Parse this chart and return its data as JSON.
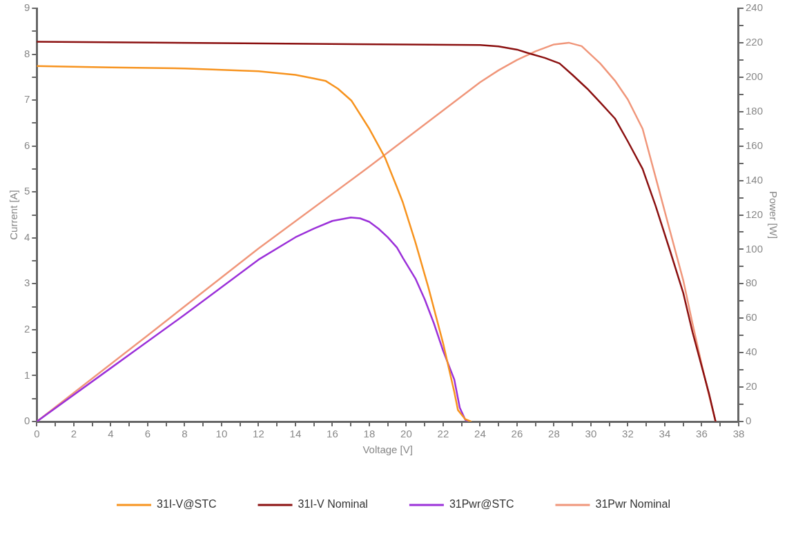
{
  "chart_data": {
    "type": "line",
    "xlabel": "Voltage [V]",
    "ylabel": "Current [A]",
    "y2label": "Power [W]",
    "xlim": [
      0,
      38
    ],
    "ylim": [
      0,
      9
    ],
    "y2lim": [
      0,
      240
    ],
    "xticks": [
      0,
      {
        "value": 1,
        "label": null
      },
      2,
      {
        "value": 3,
        "label": null
      },
      4,
      {
        "value": 5,
        "label": null
      },
      6,
      {
        "value": 7,
        "label": null
      },
      8,
      {
        "value": 9,
        "label": null
      },
      10,
      {
        "value": 11,
        "label": null
      },
      12,
      {
        "value": 13,
        "label": null
      },
      14,
      {
        "value": 15,
        "label": null
      },
      16,
      {
        "value": 17,
        "label": null
      },
      18,
      {
        "value": 19,
        "label": null
      },
      20,
      {
        "value": 21,
        "label": null
      },
      22,
      {
        "value": 23,
        "label": null
      },
      24,
      {
        "value": 25,
        "label": null
      },
      26,
      {
        "value": 27,
        "label": null
      },
      28,
      {
        "value": 29,
        "label": null
      },
      30,
      {
        "value": 31,
        "label": null
      },
      32,
      {
        "value": 33,
        "label": null
      },
      34,
      {
        "value": 35,
        "label": null
      },
      36,
      {
        "value": 37,
        "label": null
      },
      38
    ],
    "yticks": [
      0,
      {
        "value": 0.5,
        "label": null
      },
      1,
      {
        "value": 1.5,
        "label": null
      },
      2,
      {
        "value": 2.5,
        "label": null
      },
      3,
      {
        "value": 3.5,
        "label": null
      },
      4,
      {
        "value": 4.5,
        "label": null
      },
      5,
      {
        "value": 5.5,
        "label": null
      },
      6,
      {
        "value": 6.5,
        "label": null
      },
      7,
      {
        "value": 7.5,
        "label": null
      },
      8,
      {
        "value": 8.5,
        "label": null
      },
      9
    ],
    "y2ticks": [
      0,
      {
        "value": 10,
        "label": null
      },
      20,
      {
        "value": 30,
        "label": null
      },
      40,
      {
        "value": 50,
        "label": null
      },
      60,
      {
        "value": 70,
        "label": null
      },
      80,
      {
        "value": 90,
        "label": null
      },
      100,
      {
        "value": 110,
        "label": null
      },
      120,
      {
        "value": 130,
        "label": null
      },
      140,
      {
        "value": 150,
        "label": null
      },
      160,
      {
        "value": 170,
        "label": null
      },
      180,
      {
        "value": 190,
        "label": null
      },
      200,
      {
        "value": 210,
        "label": null
      },
      220,
      {
        "value": 230,
        "label": null
      },
      240
    ],
    "grid": false,
    "legend": "bottom",
    "marker": "none",
    "line_style": "solid",
    "series": [
      {
        "name": "31I-V@STC",
        "color": "#f7931e",
        "x": [
          0,
          4,
          8,
          12,
          14,
          15,
          15.63,
          16.3,
          17.03,
          17.98,
          18.85,
          19.5,
          19.82,
          20.5,
          21.2,
          22,
          22.6,
          22.8,
          23.2,
          23.5
        ],
        "values": [
          7.74,
          7.71,
          7.69,
          7.63,
          7.55,
          7.47,
          7.42,
          7.25,
          6.99,
          6.39,
          5.75,
          5.1,
          4.77,
          3.9,
          2.92,
          1.7,
          0.65,
          0.25,
          0.05,
          0
        ]
      },
      {
        "name": "31I-V Nominal",
        "color": "#8b1010",
        "x": [
          0,
          10,
          20,
          24,
          25,
          26,
          26.8,
          27.5,
          28.3,
          29,
          29.8,
          30.5,
          31.3,
          32,
          32.8,
          33.5,
          34.3,
          35,
          35.5,
          36,
          36.4,
          36.75
        ],
        "values": [
          8.27,
          8.24,
          8.21,
          8.2,
          8.17,
          8.1,
          8.0,
          7.92,
          7.8,
          7.55,
          7.25,
          6.95,
          6.6,
          6.1,
          5.5,
          4.7,
          3.7,
          2.8,
          1.95,
          1.2,
          0.6,
          0
        ]
      },
      {
        "name": "31Pwr@STC",
        "color": "#9b30d9",
        "axis": "y2",
        "x": [
          0,
          4,
          8,
          12,
          14,
          15,
          16,
          17,
          17.5,
          18,
          18.5,
          19,
          19.5,
          19.82,
          20.5,
          21,
          21.5,
          22,
          22.6,
          22.9,
          23.2,
          23.4
        ],
        "values": [
          0,
          31,
          62,
          94,
          107,
          112,
          116.5,
          118.5,
          118,
          116,
          112,
          107,
          101,
          95,
          83,
          71,
          57,
          41,
          24.5,
          8,
          1,
          0
        ]
      },
      {
        "name": "31Pwr Nominal",
        "color": "#f0967a",
        "axis": "y2",
        "x": [
          0,
          6,
          12,
          18,
          24,
          25,
          26,
          27,
          28,
          28.8,
          29.5,
          30.5,
          31.3,
          32,
          32.8,
          33.5,
          34.3,
          35,
          35.5,
          36,
          36.4,
          36.75
        ],
        "values": [
          0,
          50,
          100.5,
          148,
          197,
          204,
          210,
          215,
          219,
          220,
          218,
          208,
          198,
          187,
          170,
          142,
          110,
          82,
          57,
          33,
          15,
          0
        ]
      }
    ]
  }
}
